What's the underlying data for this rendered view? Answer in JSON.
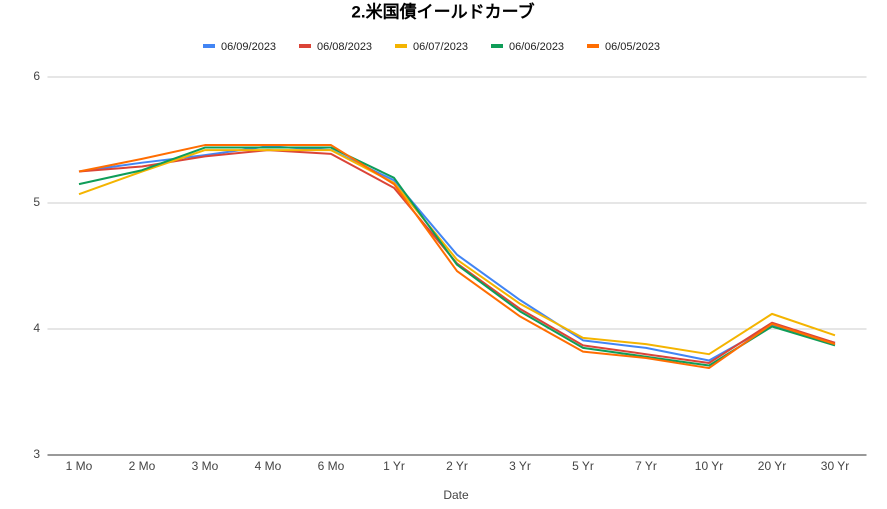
{
  "chart_data": {
    "type": "line",
    "title": "2.米国債イールドカーブ",
    "x_label": "Date",
    "categories": [
      "1 Mo",
      "2 Mo",
      "3 Mo",
      "4 Mo",
      "6 Mo",
      "1 Yr",
      "2 Yr",
      "3 Yr",
      "5 Yr",
      "7 Yr",
      "10 Yr",
      "20 Yr",
      "30 Yr"
    ],
    "series": [
      {
        "name": "06/09/2023",
        "color": "#4285f4",
        "values": [
          5.25,
          5.32,
          5.38,
          5.45,
          5.42,
          5.18,
          4.59,
          4.23,
          3.91,
          3.85,
          3.75,
          4.03,
          3.89
        ]
      },
      {
        "name": "06/08/2023",
        "color": "#db4437",
        "values": [
          5.25,
          5.29,
          5.37,
          5.42,
          5.39,
          5.12,
          4.52,
          4.16,
          3.87,
          3.8,
          3.73,
          4.05,
          3.89
        ]
      },
      {
        "name": "06/07/2023",
        "color": "#f4b400",
        "values": [
          5.07,
          5.25,
          5.42,
          5.42,
          5.42,
          5.16,
          4.55,
          4.2,
          3.93,
          3.88,
          3.8,
          4.12,
          3.95
        ]
      },
      {
        "name": "06/06/2023",
        "color": "#0f9d58",
        "values": [
          5.15,
          5.26,
          5.44,
          5.44,
          5.44,
          5.2,
          4.51,
          4.14,
          3.85,
          3.78,
          3.71,
          4.02,
          3.87
        ]
      },
      {
        "name": "06/05/2023",
        "color": "#ff6d01",
        "values": [
          5.25,
          5.35,
          5.46,
          5.46,
          5.46,
          5.15,
          4.46,
          4.1,
          3.82,
          3.77,
          3.69,
          4.04,
          3.88
        ]
      }
    ],
    "ylim": [
      3,
      6
    ],
    "yticks": [
      3,
      4,
      5,
      6
    ],
    "grid": true
  }
}
